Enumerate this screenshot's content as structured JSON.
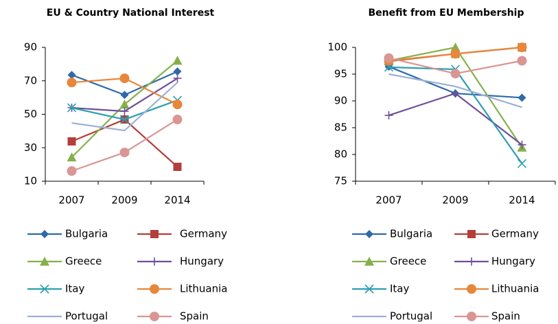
{
  "chart_data": [
    {
      "type": "line",
      "title": "EU & Country National Interest",
      "categories": [
        "2007",
        "2009",
        "2014"
      ],
      "ylim": [
        10,
        90
      ],
      "yticks": [
        10,
        30,
        50,
        70,
        90
      ],
      "series": [
        {
          "name": "Bulgaria",
          "color": "#2e6aa8",
          "marker": "diamond",
          "values": [
            73.5,
            61.6,
            75.6
          ]
        },
        {
          "name": "Germany",
          "color": "#b33e3a",
          "marker": "square",
          "values": [
            33.8,
            46.9,
            18.6
          ]
        },
        {
          "name": "Greece",
          "color": "#86b04a",
          "marker": "triangle",
          "values": [
            24.3,
            55.9,
            82.1
          ]
        },
        {
          "name": "Hungary",
          "color": "#6f4f99",
          "marker": "plus",
          "values": [
            53.9,
            51.8,
            71.5
          ]
        },
        {
          "name": "Itay",
          "color": "#2a9fb0",
          "marker": "cross",
          "values": [
            53.9,
            46.9,
            58.4
          ]
        },
        {
          "name": "Lithuania",
          "color": "#e8873a",
          "marker": "circle",
          "values": [
            69,
            71.5,
            55.9
          ]
        },
        {
          "name": "Portugal",
          "color": "#9bb0d6",
          "marker": "none",
          "values": [
            44.8,
            40.3,
            69
          ]
        },
        {
          "name": "Spain",
          "color": "#d99694",
          "marker": "circle",
          "values": [
            16.1,
            27.2,
            46.9
          ]
        }
      ]
    },
    {
      "type": "line",
      "title": "Benefit from EU Membership",
      "categories": [
        "2007",
        "2009",
        "2014"
      ],
      "ylim": [
        75,
        100
      ],
      "yticks": [
        75,
        80,
        85,
        90,
        95,
        100
      ],
      "series": [
        {
          "name": "Bulgaria",
          "color": "#2e6aa8",
          "marker": "diamond",
          "values": [
            96.4,
            91.4,
            90.6
          ]
        },
        {
          "name": "Germany",
          "color": "#b33e3a",
          "marker": "square",
          "values": [
            97.4,
            98.8,
            100
          ]
        },
        {
          "name": "Greece",
          "color": "#86b04a",
          "marker": "triangle",
          "values": [
            97.5,
            100,
            81.3
          ]
        },
        {
          "name": "Hungary",
          "color": "#6f4f99",
          "marker": "plus",
          "values": [
            87.3,
            91.4,
            81.8
          ]
        },
        {
          "name": "Itay",
          "color": "#2a9fb0",
          "marker": "cross",
          "values": [
            96.3,
            95.9,
            78.3
          ]
        },
        {
          "name": "Lithuania",
          "color": "#e8873a",
          "marker": "circle",
          "values": [
            97.5,
            98.8,
            100
          ]
        },
        {
          "name": "Portugal",
          "color": "#9bb0d6",
          "marker": "none",
          "values": [
            95,
            92.7,
            88.8
          ]
        },
        {
          "name": "Spain",
          "color": "#d99694",
          "marker": "circle",
          "values": [
            98,
            95.1,
            97.5
          ]
        }
      ]
    }
  ]
}
